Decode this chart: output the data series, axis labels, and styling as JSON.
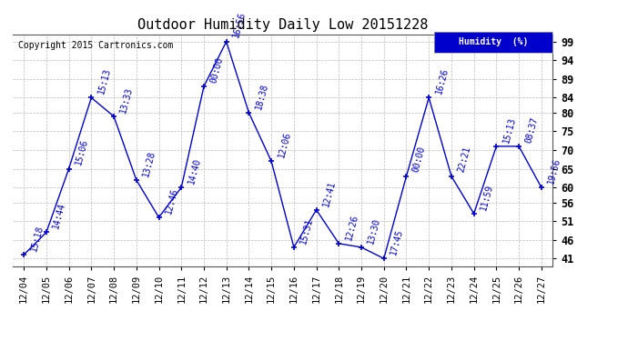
{
  "title": "Outdoor Humidity Daily Low 20151228",
  "copyright": "Copyright 2015 Cartronics.com",
  "legend_label": "Humidity  (%)",
  "x_labels": [
    "12/04",
    "12/05",
    "12/06",
    "12/07",
    "12/08",
    "12/09",
    "12/10",
    "12/11",
    "12/12",
    "12/13",
    "12/14",
    "12/15",
    "12/16",
    "12/17",
    "12/18",
    "12/19",
    "12/20",
    "12/21",
    "12/22",
    "12/23",
    "12/24",
    "12/25",
    "12/26",
    "12/27"
  ],
  "y_values": [
    42,
    48,
    65,
    84,
    79,
    62,
    52,
    60,
    87,
    99,
    80,
    67,
    44,
    54,
    45,
    44,
    41,
    63,
    84,
    63,
    53,
    71,
    71,
    60
  ],
  "point_labels": [
    "15:18",
    "14:44",
    "15:06",
    "15:13",
    "13:33",
    "13:28",
    "12:46",
    "14:40",
    "00:00",
    "16:56",
    "18:38",
    "12:06",
    "15:31",
    "12:41",
    "12:26",
    "13:30",
    "17:45",
    "00:00",
    "16:26",
    "22:21",
    "11:59",
    "15:13",
    "08:37",
    "19:56"
  ],
  "y_ticks": [
    41,
    46,
    51,
    56,
    60,
    65,
    70,
    75,
    80,
    84,
    89,
    94,
    99
  ],
  "ylim": [
    39,
    101
  ],
  "line_color": "#0000cc",
  "marker_color": "#0000cc",
  "grid_color": "#bbbbbb",
  "background_color": "#ffffff",
  "title_fontsize": 11,
  "label_fontsize": 7,
  "copyright_fontsize": 7,
  "tick_fontsize": 8.5,
  "xtick_fontsize": 7.5
}
